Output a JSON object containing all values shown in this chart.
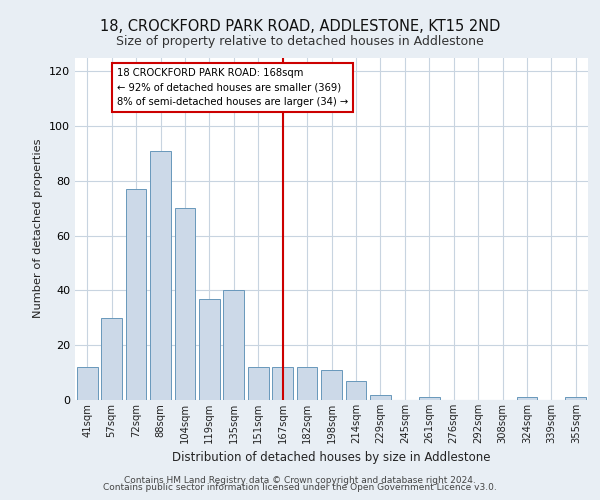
{
  "title1": "18, CROCKFORD PARK ROAD, ADDLESTONE, KT15 2ND",
  "title2": "Size of property relative to detached houses in Addlestone",
  "xlabel": "Distribution of detached houses by size in Addlestone",
  "ylabel": "Number of detached properties",
  "categories": [
    "41sqm",
    "57sqm",
    "72sqm",
    "88sqm",
    "104sqm",
    "119sqm",
    "135sqm",
    "151sqm",
    "167sqm",
    "182sqm",
    "198sqm",
    "214sqm",
    "229sqm",
    "245sqm",
    "261sqm",
    "276sqm",
    "292sqm",
    "308sqm",
    "324sqm",
    "339sqm",
    "355sqm"
  ],
  "bar_heights": [
    12,
    30,
    77,
    91,
    70,
    37,
    40,
    12,
    12,
    12,
    11,
    7,
    2,
    0,
    1,
    0,
    0,
    0,
    1,
    0,
    1
  ],
  "bar_color": "#ccd9e8",
  "bar_edge_color": "#6898bb",
  "annotation_text_line1": "18 CROCKFORD PARK ROAD: 168sqm",
  "annotation_text_line2": "← 92% of detached houses are smaller (369)",
  "annotation_text_line3": "8% of semi-detached houses are larger (34) →",
  "vline_color": "#cc0000",
  "vline_x_index": 8,
  "ylim": [
    0,
    125
  ],
  "yticks": [
    0,
    20,
    40,
    60,
    80,
    100,
    120
  ],
  "footer1": "Contains HM Land Registry data © Crown copyright and database right 2024.",
  "footer2": "Contains public sector information licensed under the Open Government Licence v3.0.",
  "bg_color": "#e8eef4",
  "plot_bg_color": "#ffffff",
  "grid_color": "#c8d4e0"
}
